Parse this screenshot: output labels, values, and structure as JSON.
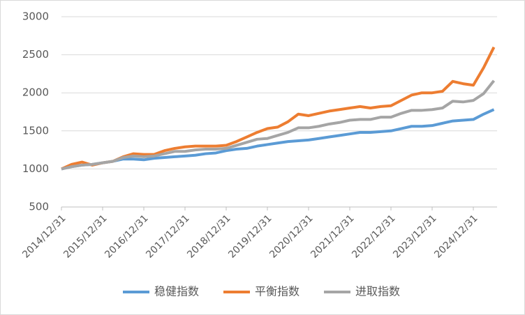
{
  "chart_data": {
    "type": "line",
    "categories": [
      "2014/12/31",
      null,
      null,
      null,
      "2015/12/31",
      null,
      null,
      null,
      "2016/12/31",
      null,
      null,
      null,
      "2017/12/31",
      null,
      null,
      null,
      "2018/12/31",
      null,
      null,
      null,
      "2019/12/31",
      null,
      null,
      null,
      "2020/12/31",
      null,
      null,
      null,
      "2021/12/31",
      null,
      null,
      null,
      "2022/12/31",
      null,
      null,
      null,
      "2023/12/31",
      null,
      null,
      null,
      "2024/12/31",
      null,
      null
    ],
    "series": [
      {
        "name": "稳健指数",
        "color": "#5b9bd5",
        "values": [
          1000,
          1030,
          1050,
          1060,
          1080,
          1100,
          1130,
          1130,
          1120,
          1140,
          1150,
          1160,
          1170,
          1180,
          1200,
          1210,
          1240,
          1260,
          1270,
          1300,
          1320,
          1340,
          1360,
          1370,
          1380,
          1400,
          1420,
          1440,
          1460,
          1480,
          1480,
          1490,
          1500,
          1530,
          1560,
          1560,
          1570,
          1600,
          1630,
          1640,
          1650,
          1720,
          1780
        ]
      },
      {
        "name": "平衡指数",
        "color": "#ed7d31",
        "values": [
          1000,
          1060,
          1090,
          1050,
          1080,
          1100,
          1160,
          1200,
          1190,
          1190,
          1240,
          1270,
          1290,
          1300,
          1300,
          1300,
          1310,
          1360,
          1420,
          1480,
          1530,
          1550,
          1620,
          1720,
          1700,
          1730,
          1760,
          1780,
          1800,
          1820,
          1800,
          1820,
          1830,
          1900,
          1970,
          2000,
          2000,
          2020,
          2150,
          2120,
          2100,
          2330,
          2600
        ]
      },
      {
        "name": "进取指数",
        "color": "#a5a5a5",
        "values": [
          1000,
          1030,
          1050,
          1060,
          1080,
          1100,
          1150,
          1170,
          1160,
          1170,
          1200,
          1230,
          1230,
          1250,
          1260,
          1260,
          1270,
          1310,
          1350,
          1390,
          1400,
          1440,
          1480,
          1540,
          1540,
          1560,
          1590,
          1610,
          1640,
          1650,
          1650,
          1680,
          1680,
          1730,
          1770,
          1770,
          1780,
          1800,
          1890,
          1880,
          1900,
          1990,
          2160
        ]
      }
    ],
    "ylim": [
      500,
      3000
    ],
    "yticks": [
      500,
      1000,
      1500,
      2000,
      2500,
      3000
    ],
    "grid": true,
    "legend": "bottom"
  }
}
